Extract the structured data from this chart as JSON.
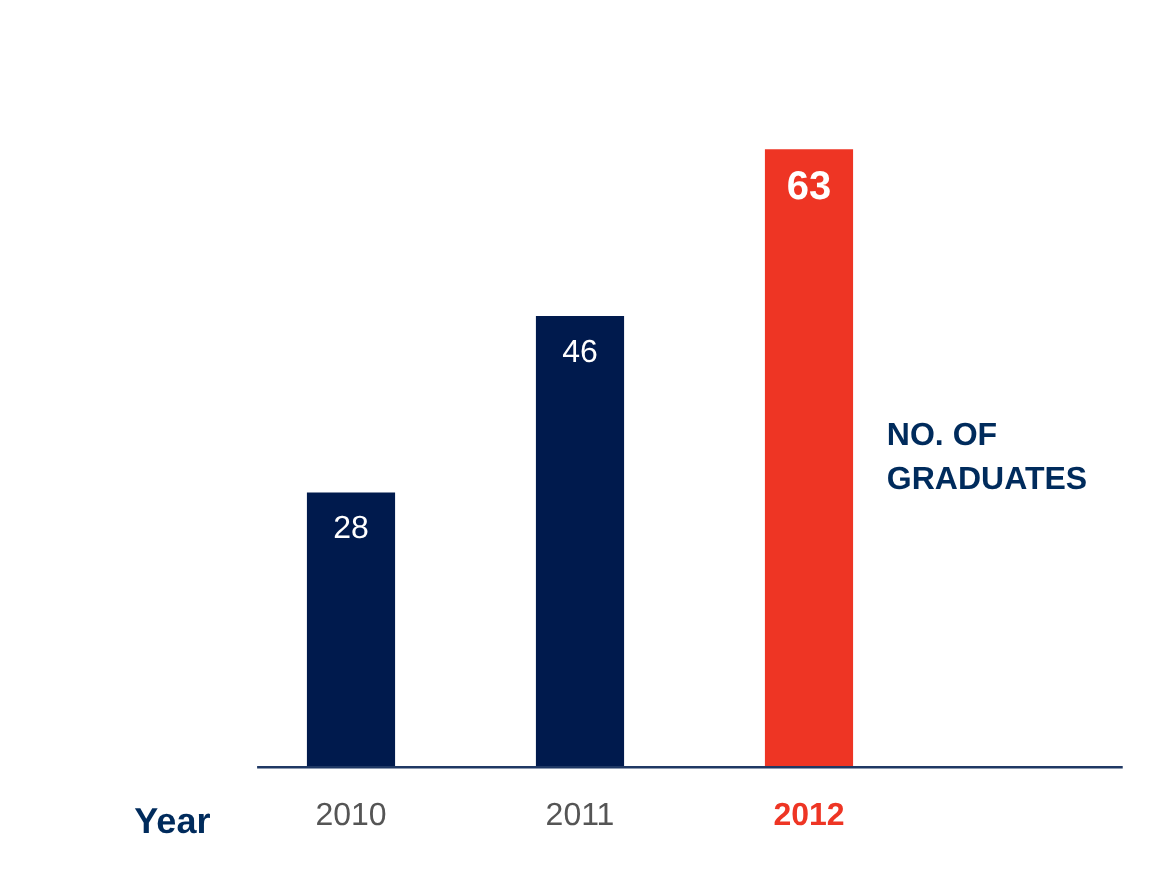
{
  "chart_data": {
    "type": "bar",
    "xlabel": "Year",
    "ylabel": "NO. OF\nGRADUATES",
    "categories": [
      "2010",
      "2011",
      "2012"
    ],
    "values": [
      28,
      46,
      63
    ],
    "colors": [
      "#001a4d",
      "#001a4d",
      "#ee3524"
    ],
    "data_labels": true,
    "grid": false
  }
}
